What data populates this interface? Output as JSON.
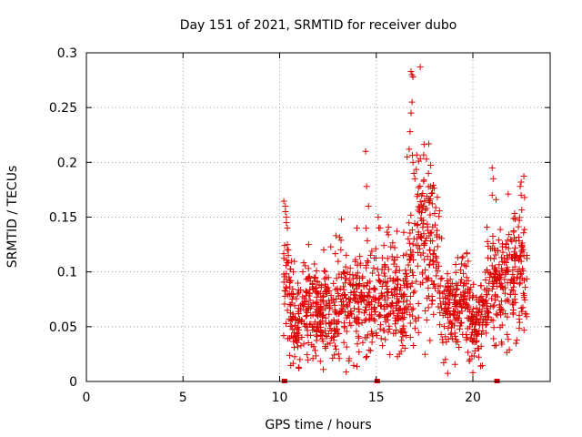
{
  "chart_data": {
    "type": "scatter",
    "title": "Day 151 of 2021, SRMTID for receiver dubo",
    "xlabel": "GPS time / hours",
    "ylabel": "SRMTID / TECUs",
    "xlim": [
      0,
      24
    ],
    "ylim": [
      0,
      0.3
    ],
    "grid": true,
    "marker": "plus",
    "color": "#dd0000",
    "x_ticks": [
      0,
      5,
      10,
      15,
      20
    ],
    "x_tick_labels": [
      "0",
      "5",
      "10",
      "15",
      "20"
    ],
    "y_ticks": [
      0,
      0.05,
      0.1,
      0.15,
      0.2,
      0.25,
      0.3
    ],
    "y_tick_labels": [
      "0",
      "0.05",
      "0.1",
      "0.15",
      "0.2",
      "0.25",
      "0.3"
    ],
    "zero_markers": [
      10.25,
      15.05,
      21.25
    ],
    "envelope": [
      [
        10.2,
        0.095
      ],
      [
        10.4,
        0.085
      ],
      [
        10.7,
        0.06
      ],
      [
        11.0,
        0.055
      ],
      [
        11.3,
        0.065
      ],
      [
        11.6,
        0.07
      ],
      [
        12.0,
        0.065
      ],
      [
        12.4,
        0.07
      ],
      [
        12.8,
        0.065
      ],
      [
        13.2,
        0.075
      ],
      [
        13.6,
        0.07
      ],
      [
        14.0,
        0.075
      ],
      [
        14.4,
        0.08
      ],
      [
        14.8,
        0.07
      ],
      [
        15.2,
        0.08
      ],
      [
        15.6,
        0.085
      ],
      [
        16.0,
        0.075
      ],
      [
        16.3,
        0.065
      ],
      [
        16.6,
        0.09
      ],
      [
        16.9,
        0.11
      ],
      [
        17.2,
        0.12
      ],
      [
        17.5,
        0.13
      ],
      [
        17.8,
        0.12
      ],
      [
        18.1,
        0.11
      ],
      [
        18.4,
        0.09
      ],
      [
        18.7,
        0.07
      ],
      [
        19.0,
        0.06
      ],
      [
        19.3,
        0.065
      ],
      [
        19.6,
        0.08
      ],
      [
        19.9,
        0.06
      ],
      [
        20.2,
        0.05
      ],
      [
        20.5,
        0.06
      ],
      [
        20.8,
        0.085
      ],
      [
        21.1,
        0.09
      ],
      [
        21.4,
        0.085
      ],
      [
        21.7,
        0.09
      ],
      [
        22.0,
        0.095
      ],
      [
        22.3,
        0.11
      ],
      [
        22.6,
        0.1
      ],
      [
        22.8,
        0.095
      ]
    ],
    "notable_points": [
      {
        "x": 10.3,
        "y": 0.16
      },
      {
        "x": 10.3,
        "y": 0.155
      },
      {
        "x": 10.35,
        "y": 0.15
      },
      {
        "x": 10.35,
        "y": 0.145
      },
      {
        "x": 10.4,
        "y": 0.14
      },
      {
        "x": 10.4,
        "y": 0.125
      },
      {
        "x": 10.45,
        "y": 0.12
      },
      {
        "x": 10.45,
        "y": 0.115
      },
      {
        "x": 11.5,
        "y": 0.125
      },
      {
        "x": 13.2,
        "y": 0.148
      },
      {
        "x": 14.0,
        "y": 0.14
      },
      {
        "x": 14.45,
        "y": 0.21
      },
      {
        "x": 14.5,
        "y": 0.178
      },
      {
        "x": 14.6,
        "y": 0.16
      },
      {
        "x": 15.1,
        "y": 0.15
      },
      {
        "x": 15.2,
        "y": 0.14
      },
      {
        "x": 16.8,
        "y": 0.283
      },
      {
        "x": 16.85,
        "y": 0.28
      },
      {
        "x": 16.9,
        "y": 0.278
      },
      {
        "x": 16.85,
        "y": 0.255
      },
      {
        "x": 16.8,
        "y": 0.245
      },
      {
        "x": 16.75,
        "y": 0.228
      },
      {
        "x": 16.7,
        "y": 0.212
      },
      {
        "x": 16.6,
        "y": 0.205
      },
      {
        "x": 16.9,
        "y": 0.2
      },
      {
        "x": 16.95,
        "y": 0.19
      },
      {
        "x": 17.0,
        "y": 0.185
      },
      {
        "x": 17.6,
        "y": 0.203
      },
      {
        "x": 17.7,
        "y": 0.19
      },
      {
        "x": 17.8,
        "y": 0.178
      },
      {
        "x": 17.9,
        "y": 0.172
      },
      {
        "x": 17.5,
        "y": 0.165
      },
      {
        "x": 17.4,
        "y": 0.158
      },
      {
        "x": 21.0,
        "y": 0.195
      },
      {
        "x": 21.05,
        "y": 0.185
      },
      {
        "x": 21.0,
        "y": 0.17
      },
      {
        "x": 22.5,
        "y": 0.182
      },
      {
        "x": 22.45,
        "y": 0.178
      },
      {
        "x": 22.5,
        "y": 0.17
      },
      {
        "x": 20.0,
        "y": 0.008
      },
      {
        "x": 20.4,
        "y": 0.014
      },
      {
        "x": 11.0,
        "y": 0.012
      },
      {
        "x": 11.05,
        "y": 0.02
      },
      {
        "x": 16.2,
        "y": 0.025
      },
      {
        "x": 20.3,
        "y": 0.03
      }
    ],
    "n_scatter_points": 1400,
    "random_seed": 151
  }
}
